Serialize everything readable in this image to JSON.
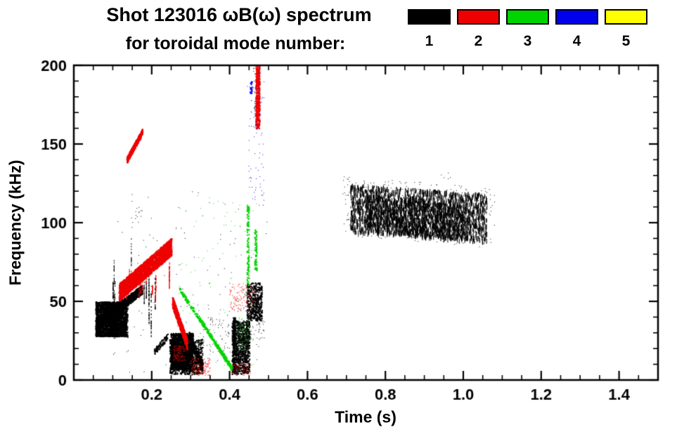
{
  "title": {
    "line1": "Shot 123016 ωB(ω) spectrum",
    "line2": "for toroidal mode number:"
  },
  "legend": {
    "entries": [
      {
        "label": "1",
        "color": "#000000"
      },
      {
        "label": "2",
        "color": "#ee0000"
      },
      {
        "label": "3",
        "color": "#00d400"
      },
      {
        "label": "4",
        "color": "#0000ee"
      },
      {
        "label": "5",
        "color": "#ffff00"
      }
    ]
  },
  "chart_data": {
    "type": "scatter",
    "title": "Shot 123016 ωB(ω) spectrum for toroidal mode number",
    "xlabel": "Time (s)",
    "ylabel": "Frequency (kHz)",
    "xlim": [
      0.0,
      1.5
    ],
    "ylim": [
      0,
      200
    ],
    "grid": false,
    "legend_position": "top-right",
    "xticks": {
      "values": [
        0.2,
        0.4,
        0.6,
        0.8,
        1.0,
        1.2,
        1.4
      ],
      "labels": [
        "0.2",
        "0.4",
        "0.6",
        "0.8",
        "1.0",
        "1.2",
        "1.4"
      ],
      "minor_step": 0.05
    },
    "yticks": {
      "values": [
        0,
        50,
        100,
        150,
        200
      ],
      "labels": [
        "0",
        "50",
        "100",
        "150",
        "200"
      ],
      "minor_step": 10
    },
    "modes": [
      {
        "mode": 1,
        "label": "1",
        "color": "#000000"
      },
      {
        "mode": 2,
        "label": "2",
        "color": "#ee0000"
      },
      {
        "mode": 3,
        "label": "3",
        "color": "#00d400"
      },
      {
        "mode": 4,
        "label": "4",
        "color": "#0000ee"
      },
      {
        "mode": 5,
        "label": "5",
        "color": "#ffff00"
      }
    ],
    "clusters": [
      {
        "mode": 1,
        "type": "blob",
        "t": [
          0.055,
          0.135
        ],
        "f": [
          28,
          50
        ],
        "n": 2600,
        "size": 2
      },
      {
        "mode": 1,
        "type": "band",
        "t": [
          0.07,
          0.175
        ],
        "fc": [
          38,
          58
        ],
        "h": 3,
        "n": 900,
        "size": 2
      },
      {
        "mode": 1,
        "type": "vlines",
        "t": [
          0.09,
          0.215
        ],
        "fbase": [
          22,
          55
        ],
        "flen": [
          10,
          45
        ],
        "lines": 14,
        "per": 35
      },
      {
        "mode": 1,
        "type": "blob",
        "t": [
          0.248,
          0.305
        ],
        "f": [
          7,
          30
        ],
        "n": 1600,
        "size": 2
      },
      {
        "mode": 1,
        "type": "blob",
        "t": [
          0.245,
          0.33
        ],
        "f": [
          4,
          26
        ],
        "n": 900,
        "size": 2
      },
      {
        "mode": 1,
        "type": "band",
        "t": [
          0.295,
          0.33
        ],
        "fc": [
          28,
          8
        ],
        "h": 3,
        "n": 250,
        "size": 2
      },
      {
        "mode": 1,
        "type": "band",
        "t": [
          0.205,
          0.24
        ],
        "fc": [
          18,
          28
        ],
        "h": 2,
        "n": 90,
        "size": 2
      },
      {
        "mode": 1,
        "type": "blob",
        "t": [
          0.405,
          0.45
        ],
        "f": [
          4,
          38
        ],
        "n": 850,
        "size": 2
      },
      {
        "mode": 1,
        "type": "vline",
        "t": [
          0.407,
          0.413
        ],
        "f": [
          5,
          40
        ],
        "n": 180
      },
      {
        "mode": 1,
        "type": "blob",
        "t": [
          0.443,
          0.482
        ],
        "f": [
          38,
          62
        ],
        "n": 420,
        "size": 2
      },
      {
        "mode": 1,
        "type": "blob",
        "t": [
          0.33,
          0.4
        ],
        "f": [
          18,
          42
        ],
        "n": 60,
        "size": 1
      },
      {
        "mode": 1,
        "type": "blob",
        "t": [
          0.45,
          0.49
        ],
        "f": [
          26,
          38
        ],
        "n": 40,
        "size": 1
      },
      {
        "mode": 1,
        "type": "blob",
        "t": [
          0.46,
          0.478
        ],
        "f": [
          168,
          200
        ],
        "n": 60,
        "size": 1
      },
      {
        "mode": 1,
        "type": "blob",
        "t": [
          0.93,
          0.97
        ],
        "f": [
          128,
          132
        ],
        "n": 5,
        "size": 1
      },
      {
        "mode": 1,
        "type": "blob",
        "t": [
          0.155,
          0.175
        ],
        "f": [
          100,
          110
        ],
        "n": 12,
        "size": 1
      },
      {
        "mode": 1,
        "type": "band",
        "t": [
          0.71,
          1.06
        ],
        "fc": [
          110,
          104
        ],
        "h": 15,
        "n": 2100,
        "dash": true
      },
      {
        "mode": 1,
        "type": "band",
        "t": [
          0.75,
          1.02
        ],
        "fc": [
          107,
          100
        ],
        "h": 11,
        "n": 900,
        "dash": true
      },
      {
        "mode": 1,
        "type": "band",
        "t": [
          0.69,
          1.08
        ],
        "fc": [
          111,
          103
        ],
        "h": 19,
        "n": 350,
        "size": 1
      },
      {
        "mode": 1,
        "type": "blob",
        "t": [
          0.1,
          0.5
        ],
        "f": [
          5,
          120
        ],
        "n": 110,
        "size": 1
      },
      {
        "mode": 2,
        "type": "band",
        "t": [
          0.115,
          0.25
        ],
        "fc": [
          56,
          85
        ],
        "h": 5.5,
        "n": 2600,
        "size": 2
      },
      {
        "mode": 2,
        "type": "vlines",
        "t": [
          0.125,
          0.25
        ],
        "fbase": [
          50,
          62
        ],
        "flen": [
          5,
          20
        ],
        "lines": 12,
        "per": 25
      },
      {
        "mode": 2,
        "type": "band",
        "t": [
          0.135,
          0.175
        ],
        "fc": [
          140,
          158
        ],
        "h": 2,
        "n": 360,
        "size": 2
      },
      {
        "mode": 2,
        "type": "band",
        "t": [
          0.252,
          0.29
        ],
        "fc": [
          50,
          23
        ],
        "h": 3.5,
        "n": 750,
        "size": 2
      },
      {
        "mode": 2,
        "type": "vline",
        "t": [
          0.466,
          0.476
        ],
        "f": [
          160,
          200
        ],
        "n": 420
      },
      {
        "mode": 2,
        "type": "blob",
        "t": [
          0.4,
          0.468
        ],
        "f": [
          44,
          62
        ],
        "n": 140,
        "size": 1
      },
      {
        "mode": 2,
        "type": "blob",
        "t": [
          0.3,
          0.35
        ],
        "f": [
          3,
          14
        ],
        "n": 150,
        "size": 1
      },
      {
        "mode": 2,
        "type": "blob",
        "t": [
          0.4,
          0.455
        ],
        "f": [
          3,
          11
        ],
        "n": 90,
        "size": 1
      },
      {
        "mode": 2,
        "type": "blob",
        "t": [
          0.255,
          0.285
        ],
        "f": [
          12,
          22
        ],
        "n": 120,
        "size": 1
      },
      {
        "mode": 3,
        "type": "band",
        "t": [
          0.27,
          0.405
        ],
        "fc": [
          58,
          8
        ],
        "h": 1.5,
        "n": 240,
        "size": 2
      },
      {
        "mode": 3,
        "type": "band",
        "t": [
          0.315,
          0.405
        ],
        "fc": [
          42,
          7
        ],
        "h": 1.5,
        "n": 130,
        "size": 2
      },
      {
        "mode": 3,
        "type": "vline",
        "t": [
          0.443,
          0.449
        ],
        "f": [
          60,
          112
        ],
        "n": 110
      },
      {
        "mode": 3,
        "type": "vline",
        "t": [
          0.463,
          0.469
        ],
        "f": [
          70,
          96
        ],
        "n": 70
      },
      {
        "mode": 3,
        "type": "blob",
        "t": [
          0.25,
          0.48
        ],
        "f": [
          5,
          118
        ],
        "n": 90,
        "size": 1
      },
      {
        "mode": 3,
        "type": "blob",
        "t": [
          0.42,
          0.45
        ],
        "f": [
          18,
          40
        ],
        "n": 60,
        "size": 1
      },
      {
        "mode": 4,
        "type": "blob",
        "t": [
          0.445,
          0.488
        ],
        "f": [
          108,
          192
        ],
        "n": 70,
        "size": 1
      },
      {
        "mode": 4,
        "type": "vline",
        "t": [
          0.452,
          0.456
        ],
        "f": [
          182,
          190
        ],
        "n": 20
      },
      {
        "mode": 4,
        "type": "blob",
        "t": [
          0.3,
          0.45
        ],
        "f": [
          10,
          90
        ],
        "n": 25,
        "size": 1
      }
    ]
  }
}
